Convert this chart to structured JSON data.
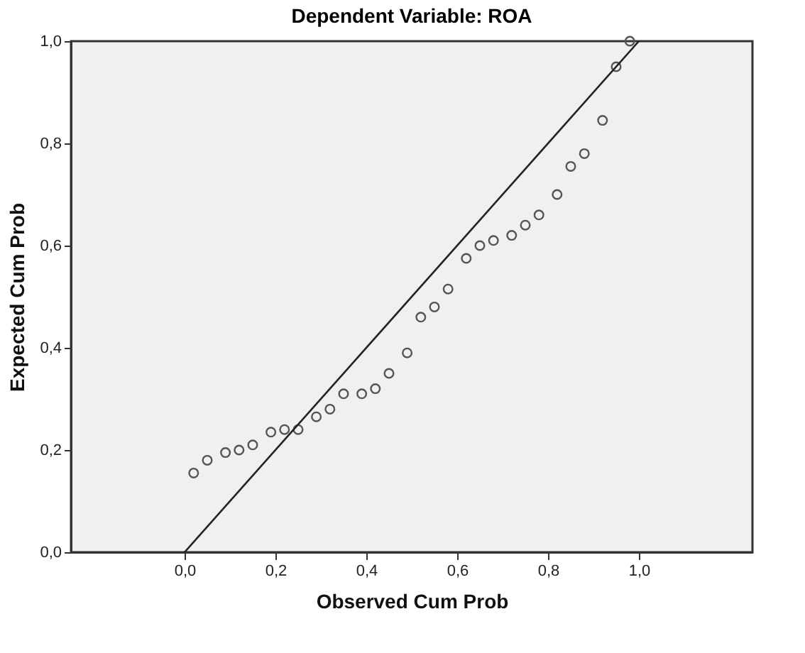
{
  "chart_data": {
    "type": "scatter",
    "title": "Dependent Variable: ROA",
    "xlabel": "Observed Cum Prob",
    "ylabel": "Expected Cum Prob",
    "xlim": [
      -0.25,
      1.25
    ],
    "ylim": [
      0,
      1
    ],
    "xticks": [
      {
        "value": 0,
        "label": "0,0"
      },
      {
        "value": 0.2,
        "label": "0,2"
      },
      {
        "value": 0.4,
        "label": "0,4"
      },
      {
        "value": 0.6,
        "label": "0,6"
      },
      {
        "value": 0.8,
        "label": "0,8"
      },
      {
        "value": 1,
        "label": "1,0"
      }
    ],
    "yticks": [
      {
        "value": 0,
        "label": "0,0"
      },
      {
        "value": 0.2,
        "label": "0,2"
      },
      {
        "value": 0.4,
        "label": "0,4"
      },
      {
        "value": 0.6,
        "label": "0,6"
      },
      {
        "value": 0.8,
        "label": "0,8"
      },
      {
        "value": 1,
        "label": "1,0"
      }
    ],
    "grid": false,
    "series": [
      {
        "color": "#555555",
        "marker": "circle",
        "x": [
          0.02,
          0.05,
          0.09,
          0.12,
          0.15,
          0.19,
          0.22,
          0.25,
          0.29,
          0.32,
          0.35,
          0.39,
          0.42,
          0.45,
          0.49,
          0.52,
          0.55,
          0.58,
          0.62,
          0.65,
          0.68,
          0.72,
          0.75,
          0.78,
          0.82,
          0.85,
          0.88,
          0.92,
          0.95,
          0.98
        ],
        "values": [
          0.155,
          0.18,
          0.195,
          0.2,
          0.21,
          0.235,
          0.24,
          0.24,
          0.265,
          0.28,
          0.31,
          0.31,
          0.32,
          0.35,
          0.39,
          0.46,
          0.48,
          0.515,
          0.575,
          0.6,
          0.61,
          0.62,
          0.64,
          0.66,
          0.7,
          0.755,
          0.78,
          0.845,
          0.95,
          1.0
        ]
      },
      {
        "type": "line",
        "color": "#222222",
        "line_style": "solid",
        "marker": "none",
        "x": [
          0,
          1
        ],
        "values": [
          0,
          1
        ]
      }
    ]
  }
}
